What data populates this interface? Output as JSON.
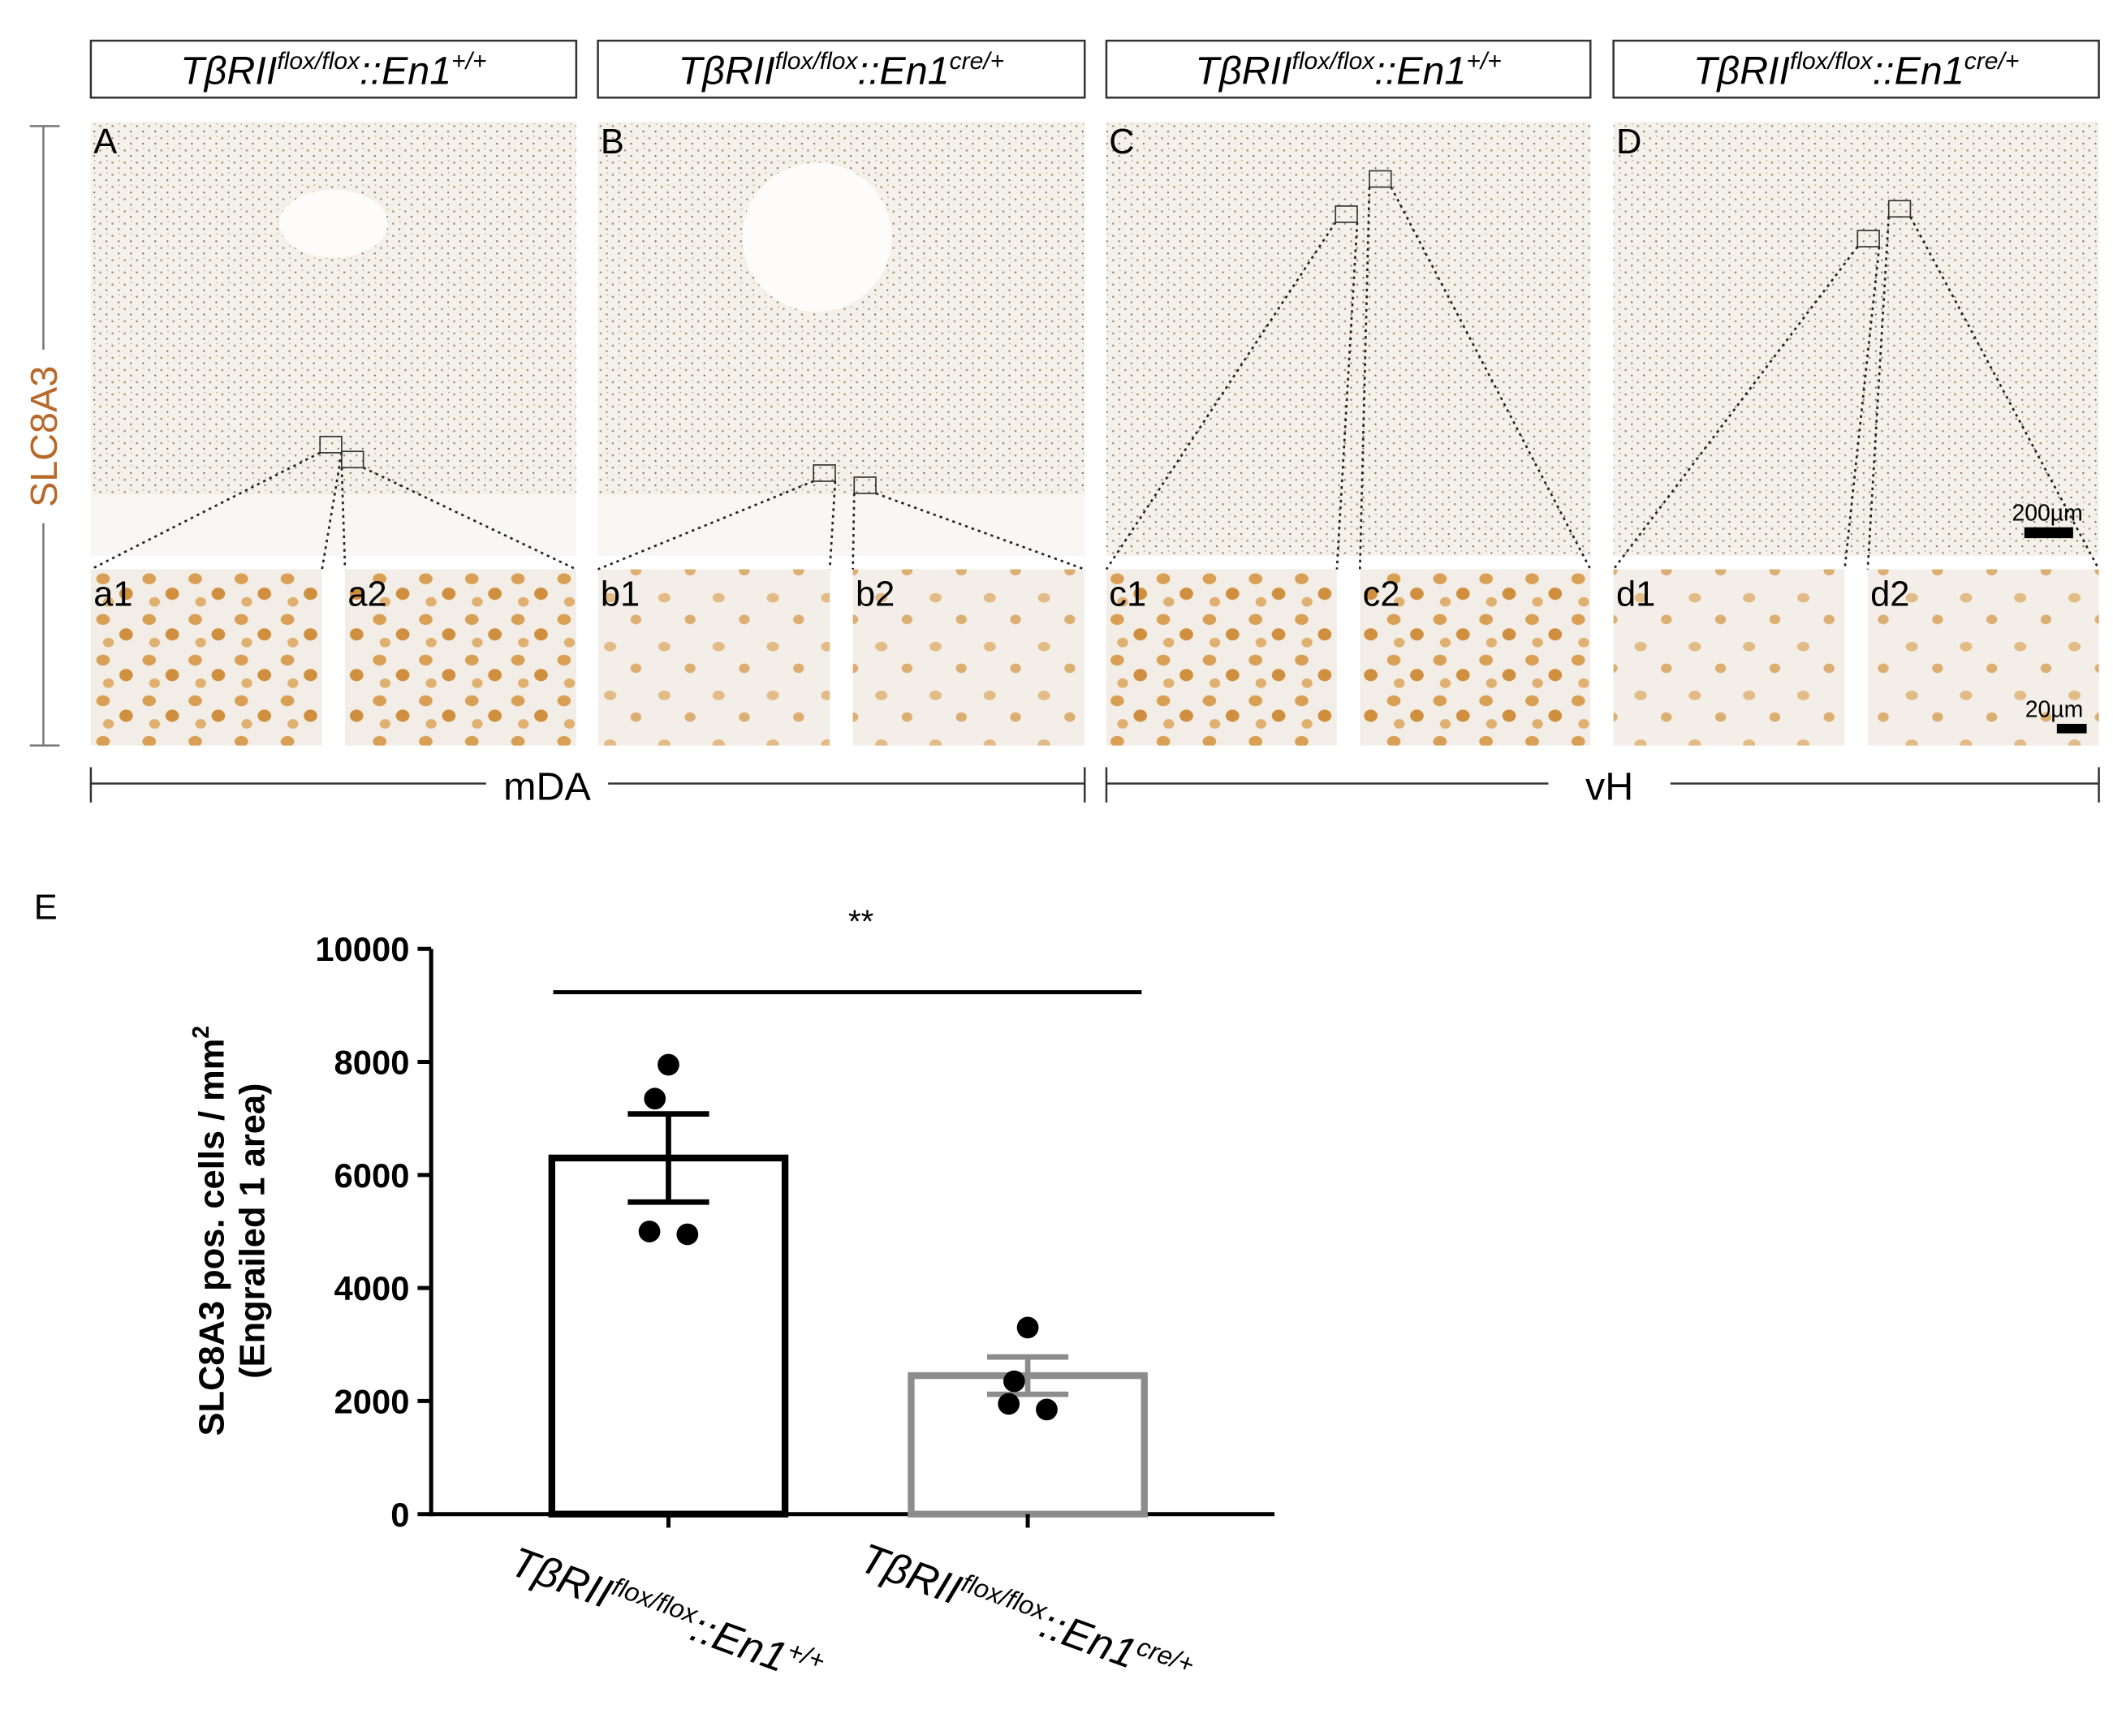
{
  "figure": {
    "panels": [
      {
        "letter": "A",
        "genotype": {
          "gene": "TβRII",
          "allele": "flox/flox",
          "sep": "::En1",
          "en1": "+/+"
        },
        "insets": [
          "a1",
          "a2"
        ]
      },
      {
        "letter": "B",
        "genotype": {
          "gene": "TβRII",
          "allele": "flox/flox",
          "sep": "::En1",
          "en1": "cre/+"
        },
        "insets": [
          "b1",
          "b2"
        ]
      },
      {
        "letter": "C",
        "genotype": {
          "gene": "TβRII",
          "allele": "flox/flox",
          "sep": "::En1",
          "en1": "+/+"
        },
        "insets": [
          "c1",
          "c2"
        ]
      },
      {
        "letter": "D",
        "genotype": {
          "gene": "TβRII",
          "allele": "flox/flox",
          "sep": "::En1",
          "en1": "cre/+"
        },
        "insets": [
          "d1",
          "d2"
        ]
      }
    ],
    "stain": "SLC8A3",
    "regions": [
      "mDA",
      "vH"
    ],
    "scale_bars": [
      "200µm",
      "20µm"
    ]
  },
  "chart_data": {
    "type": "bar",
    "panel_letter": "E",
    "y_label": {
      "line1": "SLC8A3 pos. cells / mm",
      "sup": "2",
      "line2": "(Engrailed 1 area)"
    },
    "categories": [
      {
        "gene": "TβRII",
        "allele": "flox/flox",
        "sep": "::En1",
        "en1": "+/+"
      },
      {
        "gene": "TβRII",
        "allele": "flox/flox",
        "sep": "::En1",
        "en1": "cre/+"
      }
    ],
    "values": [
      6300,
      2450
    ],
    "errors": [
      780,
      330
    ],
    "points": [
      [
        7950,
        7350,
        5000,
        4950
      ],
      [
        3300,
        2350,
        1950,
        1850
      ]
    ],
    "colors": [
      "#000000",
      "#8c8c8c"
    ],
    "significance": "**",
    "ylim": [
      0,
      10000
    ],
    "yticks": [
      0,
      2000,
      4000,
      6000,
      8000,
      10000
    ]
  }
}
